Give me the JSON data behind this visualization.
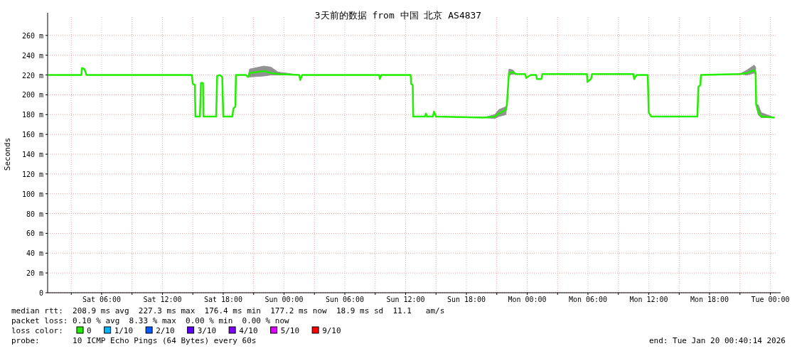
{
  "chart_data": {
    "type": "line",
    "title": "3天前的数据 from 中国 北京 AS4837",
    "ylabel": "Seconds",
    "legend_title": "loss color:",
    "legend": "bottom",
    "grid": true,
    "marker": "none",
    "line_style": "solid",
    "xlim": [
      "2026-01-17T00:40",
      "2026-01-20T00:40"
    ],
    "ylim": [
      0,
      280
    ],
    "xticks": [
      {
        "value": "2026-01-17T03:00",
        "label": null
      },
      {
        "value": "2026-01-17T06:00",
        "label": "Sat 06:00"
      },
      {
        "value": "2026-01-17T09:00",
        "label": null
      },
      {
        "value": "2026-01-17T12:00",
        "label": "Sat 12:00"
      },
      {
        "value": "2026-01-17T15:00",
        "label": null
      },
      {
        "value": "2026-01-17T18:00",
        "label": "Sat 18:00"
      },
      {
        "value": "2026-01-17T21:00",
        "label": null
      },
      {
        "value": "2026-01-18T00:00",
        "label": "Sun 00:00"
      },
      {
        "value": "2026-01-18T03:00",
        "label": null
      },
      {
        "value": "2026-01-18T06:00",
        "label": "Sun 06:00"
      },
      {
        "value": "2026-01-18T09:00",
        "label": null
      },
      {
        "value": "2026-01-18T12:00",
        "label": "Sun 12:00"
      },
      {
        "value": "2026-01-18T15:00",
        "label": null
      },
      {
        "value": "2026-01-18T18:00",
        "label": "Sun 18:00"
      },
      {
        "value": "2026-01-18T21:00",
        "label": null
      },
      {
        "value": "2026-01-19T00:00",
        "label": "Mon 00:00"
      },
      {
        "value": "2026-01-19T03:00",
        "label": null
      },
      {
        "value": "2026-01-19T06:00",
        "label": "Mon 06:00"
      },
      {
        "value": "2026-01-19T09:00",
        "label": null
      },
      {
        "value": "2026-01-19T12:00",
        "label": "Mon 12:00"
      },
      {
        "value": "2026-01-19T15:00",
        "label": null
      },
      {
        "value": "2026-01-19T18:00",
        "label": "Mon 18:00"
      },
      {
        "value": "2026-01-19T21:00",
        "label": null
      },
      {
        "value": "2026-01-20T00:00",
        "label": "Tue 00:00"
      }
    ],
    "yticks": [
      0,
      {
        "value": 20,
        "label": "20 m"
      },
      {
        "value": 40,
        "label": "40 m"
      },
      {
        "value": 60,
        "label": "60 m"
      },
      {
        "value": 80,
        "label": "80 m"
      },
      {
        "value": 100,
        "label": "100 m"
      },
      {
        "value": 120,
        "label": "120 m"
      },
      {
        "value": 140,
        "label": "140 m"
      },
      {
        "value": 160,
        "label": "160 m"
      },
      {
        "value": 180,
        "label": "180 m"
      },
      {
        "value": 200,
        "label": "200 m"
      },
      {
        "value": 220,
        "label": "220 m"
      },
      {
        "value": 240,
        "label": "240 m"
      },
      {
        "value": 260,
        "label": "260 m"
      }
    ],
    "series": [
      {
        "name": "0",
        "color": "#22ee00",
        "x": [
          "2026-01-17T00:42",
          "2026-01-17T04:00",
          "2026-01-17T04:03",
          "2026-01-17T04:18",
          "2026-01-17T04:30",
          "2026-01-17T14:54",
          "2026-01-17T15:00",
          "2026-01-17T15:12",
          "2026-01-17T15:15",
          "2026-01-17T15:42",
          "2026-01-17T15:48",
          "2026-01-17T16:00",
          "2026-01-17T16:03",
          "2026-01-17T17:18",
          "2026-01-17T17:24",
          "2026-01-17T17:39",
          "2026-01-17T17:54",
          "2026-01-17T18:00",
          "2026-01-17T18:54",
          "2026-01-17T19:00",
          "2026-01-17T19:12",
          "2026-01-17T19:15",
          "2026-01-17T20:15",
          "2026-01-17T20:27",
          "2026-01-17T20:36",
          "2026-01-17T22:00",
          "2026-01-17T22:42",
          "2026-01-17T23:24",
          "2026-01-18T01:30",
          "2026-01-18T01:36",
          "2026-01-18T01:48",
          "2026-01-18T09:24",
          "2026-01-18T09:27",
          "2026-01-18T09:36",
          "2026-01-18T12:30",
          "2026-01-18T12:33",
          "2026-01-18T12:42",
          "2026-01-18T12:45",
          "2026-01-18T13:54",
          "2026-01-18T14:00",
          "2026-01-18T14:06",
          "2026-01-18T14:42",
          "2026-01-18T14:48",
          "2026-01-18T15:00",
          "2026-01-18T19:45",
          "2026-01-18T20:48",
          "2026-01-18T21:12",
          "2026-01-18T21:54",
          "2026-01-18T22:00",
          "2026-01-18T22:12",
          "2026-01-18T22:36",
          "2026-01-18T22:54",
          "2026-01-18T23:48",
          "2026-01-18T23:54",
          "2026-01-19T00:21",
          "2026-01-19T00:54",
          "2026-01-19T00:57",
          "2026-01-19T01:24",
          "2026-01-19T01:30",
          "2026-01-19T05:54",
          "2026-01-19T05:57",
          "2026-01-19T06:18",
          "2026-01-19T06:24",
          "2026-01-19T10:30",
          "2026-01-19T10:33",
          "2026-01-19T10:48",
          "2026-01-19T11:54",
          "2026-01-19T12:00",
          "2026-01-19T12:15",
          "2026-01-19T15:24",
          "2026-01-19T16:48",
          "2026-01-19T16:54",
          "2026-01-19T17:06",
          "2026-01-19T17:09",
          "2026-01-19T21:00",
          "2026-01-19T21:42",
          "2026-01-19T22:24",
          "2026-01-19T22:33",
          "2026-01-19T22:36",
          "2026-01-19T22:48",
          "2026-01-19T23:06",
          "2026-01-20T00:24"
        ],
        "values": [
          220,
          220,
          227,
          226,
          220,
          220,
          211,
          210,
          178,
          178,
          212,
          212,
          178,
          178,
          219,
          220,
          218,
          178,
          178,
          186,
          188,
          220,
          220,
          218,
          222,
          224,
          222,
          221,
          220,
          215,
          220,
          220,
          216,
          220,
          220,
          211,
          210,
          178,
          178,
          181,
          178,
          178,
          183,
          178,
          177,
          178,
          181,
          185,
          190,
          222,
          223,
          221,
          221,
          217,
          220,
          220,
          216,
          216,
          221,
          221,
          213,
          216,
          221,
          221,
          216,
          220,
          220,
          182,
          178,
          178,
          178,
          208,
          210,
          220,
          221,
          222,
          225,
          222,
          190,
          183,
          178,
          177
        ],
        "lower": [
          220,
          220,
          227,
          226,
          220,
          220,
          211,
          210,
          178,
          178,
          212,
          212,
          178,
          178,
          219,
          220,
          218,
          178,
          178,
          186,
          188,
          220,
          220,
          218,
          218,
          219,
          220,
          220,
          220,
          215,
          220,
          220,
          216,
          220,
          220,
          211,
          210,
          178,
          178,
          181,
          178,
          178,
          183,
          178,
          177,
          176,
          178,
          180,
          190,
          220,
          221,
          221,
          221,
          217,
          220,
          220,
          216,
          216,
          221,
          221,
          213,
          216,
          221,
          221,
          216,
          220,
          220,
          182,
          178,
          178,
          178,
          208,
          210,
          220,
          221,
          220,
          222,
          220,
          190,
          180,
          177,
          177
        ],
        "upper": [
          220,
          220,
          227,
          226,
          220,
          220,
          211,
          210,
          178,
          178,
          212,
          212,
          178,
          178,
          219,
          220,
          218,
          178,
          178,
          186,
          188,
          220,
          220,
          218,
          226,
          229,
          228,
          223,
          220,
          215,
          220,
          220,
          216,
          220,
          220,
          211,
          210,
          178,
          178,
          181,
          178,
          178,
          183,
          178,
          177,
          180,
          185,
          188,
          190,
          226,
          225,
          221,
          221,
          217,
          220,
          220,
          216,
          216,
          221,
          221,
          213,
          216,
          221,
          221,
          216,
          220,
          220,
          182,
          178,
          178,
          178,
          208,
          210,
          220,
          221,
          225,
          230,
          228,
          190,
          190,
          182,
          177
        ]
      },
      {
        "name": "1/10",
        "color": "#00b8ff"
      },
      {
        "name": "2/10",
        "color": "#0059ff"
      },
      {
        "name": "3/10",
        "color": "#5e00ff"
      },
      {
        "name": "4/10",
        "color": "#7e00ff"
      },
      {
        "name": "5/10",
        "color": "#dd00ff"
      },
      {
        "name": "9/10",
        "color": "#ff0000"
      }
    ],
    "annotations": [
      "median rtt:  208.9 ms avg  227.3 ms max  176.4 ms min  177.2 ms now  18.9 ms sd  11.1   am/s",
      "packet loss: 0.10 % avg  8.33 % max  0.00 % min  0.00 % now",
      "probe:       10 ICMP Echo Pings (64 Bytes) every 60s",
      "end: Tue Jan 20 00:40:14 2026"
    ]
  }
}
